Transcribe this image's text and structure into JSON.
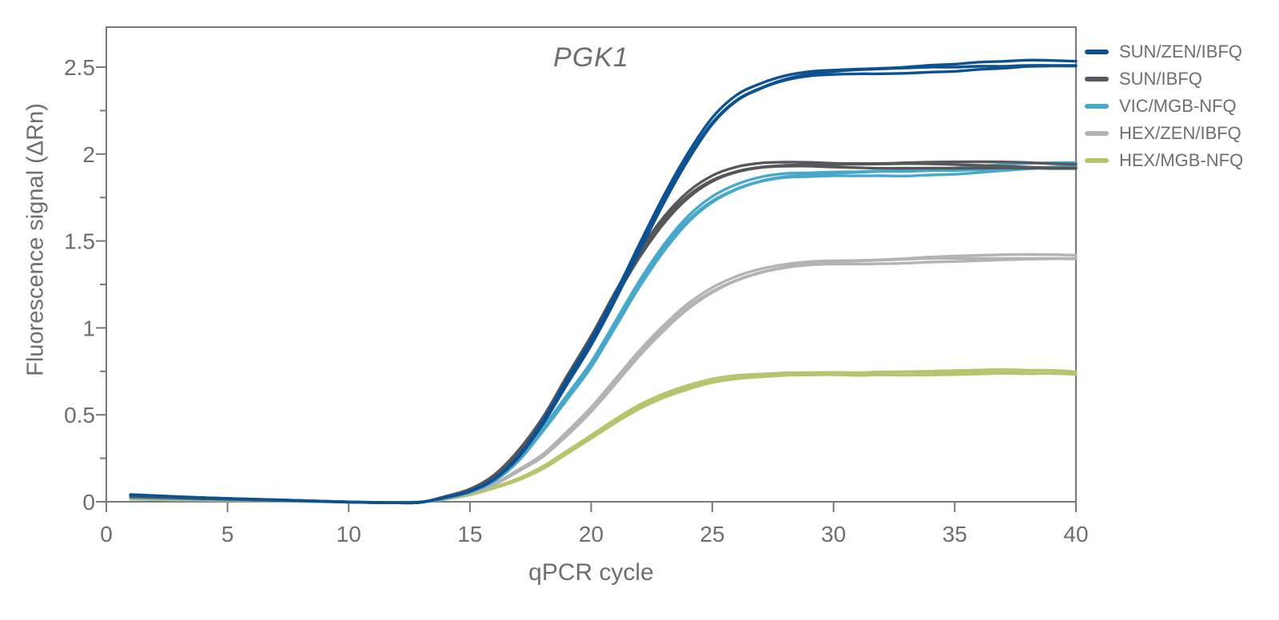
{
  "figure": {
    "title": "PGK1",
    "xlabel": "qPCR cycle",
    "ylabel": "Fluorescence signal (ΔRn)"
  },
  "colors": {
    "frame": "#77787b",
    "tick": "#77787b",
    "text": "#6d6e71"
  },
  "legend": {
    "position": "right",
    "items": [
      {
        "label": "SUN/ZEN/IBFQ",
        "color": "#0e5191"
      },
      {
        "label": "SUN/IBFQ",
        "color": "#55575a"
      },
      {
        "label": "VIC/MGB-NFQ",
        "color": "#47a8c9"
      },
      {
        "label": "HEX/ZEN/IBFQ",
        "color": "#b2b3b5"
      },
      {
        "label": "HEX/MGB-NFQ",
        "color": "#b6c46e"
      }
    ]
  },
  "chart_data": {
    "type": "line",
    "title": "PGK1",
    "xlabel": "qPCR cycle",
    "ylabel": "Fluorescence signal (ΔRn)",
    "xlim": [
      0,
      40
    ],
    "ylim": [
      0,
      2.73
    ],
    "grid": false,
    "xticks": [
      0,
      5,
      10,
      15,
      20,
      25,
      30,
      35,
      40
    ],
    "yticks": [
      0,
      0.5,
      1,
      1.5,
      2,
      2.5
    ],
    "ytick_labels": [
      "0",
      "0.5",
      "1",
      "1.5",
      "2",
      "2.5"
    ],
    "yticks_minor": [
      0.25,
      0.75,
      1.25,
      1.75,
      2.25
    ],
    "replicates": {
      "count": 3,
      "spread": 0.015
    },
    "x": [
      1,
      2,
      3,
      4,
      5,
      6,
      7,
      8,
      9,
      10,
      11,
      12,
      13,
      14,
      15,
      16,
      17,
      18,
      19,
      20,
      21,
      22,
      23,
      24,
      25,
      26,
      27,
      28,
      29,
      30,
      31,
      32,
      33,
      34,
      35,
      36,
      37,
      38,
      39,
      40
    ],
    "series": [
      {
        "name": "SUN/ZEN/IBFQ",
        "color": "#0e5191",
        "plateau": 2.51,
        "values": [
          0.04,
          0.034,
          0.028,
          0.023,
          0.019,
          0.015,
          0.011,
          0.007,
          0.003,
          -0.001,
          -0.004,
          -0.005,
          -0.002,
          0.025,
          0.06,
          0.13,
          0.26,
          0.46,
          0.7,
          0.93,
          1.19,
          1.47,
          1.74,
          1.98,
          2.18,
          2.31,
          2.38,
          2.43,
          2.46,
          2.475,
          2.485,
          2.49,
          2.495,
          2.5,
          2.5,
          2.505,
          2.505,
          2.51,
          2.51,
          2.51
        ]
      },
      {
        "name": "SUN/IBFQ",
        "color": "#55575a",
        "plateau": 1.94,
        "values": [
          0.03,
          0.026,
          0.022,
          0.018,
          0.015,
          0.012,
          0.009,
          0.006,
          0.002,
          -0.002,
          -0.005,
          -0.006,
          -0.003,
          0.03,
          0.07,
          0.15,
          0.29,
          0.48,
          0.72,
          0.95,
          1.2,
          1.43,
          1.62,
          1.76,
          1.85,
          1.9,
          1.925,
          1.935,
          1.94,
          1.94,
          1.942,
          1.943,
          1.945,
          1.944,
          1.94,
          1.935,
          1.93,
          1.925,
          1.92,
          1.92
        ]
      },
      {
        "name": "VIC/MGB-NFQ",
        "color": "#47a8c9",
        "plateau": 1.93,
        "values": [
          0.024,
          0.021,
          0.018,
          0.015,
          0.012,
          0.01,
          0.007,
          0.004,
          0.001,
          -0.002,
          -0.004,
          -0.005,
          -0.002,
          0.02,
          0.055,
          0.12,
          0.24,
          0.42,
          0.61,
          0.8,
          1.03,
          1.26,
          1.46,
          1.62,
          1.73,
          1.8,
          1.845,
          1.87,
          1.88,
          1.89,
          1.895,
          1.9,
          1.9,
          1.905,
          1.905,
          1.91,
          1.915,
          1.92,
          1.925,
          1.93
        ]
      },
      {
        "name": "HEX/ZEN/IBFQ",
        "color": "#b2b3b5",
        "plateau": 1.4,
        "values": [
          0.02,
          0.018,
          0.015,
          0.013,
          0.011,
          0.009,
          0.006,
          0.003,
          0.001,
          -0.002,
          -0.004,
          -0.004,
          -0.001,
          0.02,
          0.05,
          0.1,
          0.18,
          0.27,
          0.4,
          0.54,
          0.7,
          0.86,
          1.0,
          1.12,
          1.21,
          1.275,
          1.32,
          1.35,
          1.37,
          1.38,
          1.385,
          1.39,
          1.395,
          1.4,
          1.4,
          1.4,
          1.4,
          1.4,
          1.4,
          1.4
        ]
      },
      {
        "name": "HEX/MGB-NFQ",
        "color": "#b6c46e",
        "plateau": 0.74,
        "values": [
          0.015,
          0.013,
          0.011,
          0.01,
          0.008,
          0.007,
          0.005,
          0.003,
          0.001,
          -0.001,
          -0.003,
          -0.003,
          0.0,
          0.015,
          0.04,
          0.08,
          0.13,
          0.2,
          0.29,
          0.38,
          0.47,
          0.55,
          0.61,
          0.655,
          0.69,
          0.71,
          0.72,
          0.73,
          0.735,
          0.74,
          0.74,
          0.745,
          0.745,
          0.745,
          0.745,
          0.745,
          0.745,
          0.74,
          0.74,
          0.735
        ]
      }
    ]
  }
}
